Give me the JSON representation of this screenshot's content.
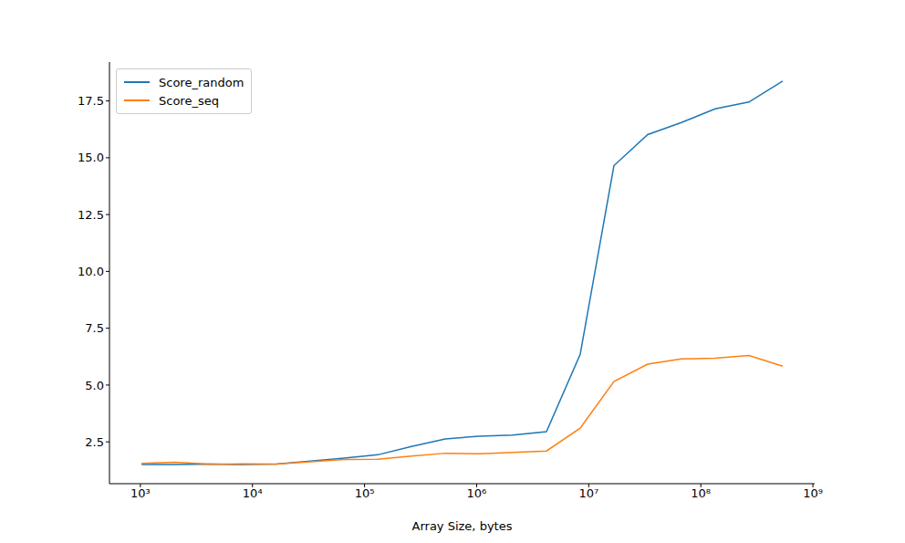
{
  "chart_data": {
    "type": "line",
    "xlabel": "Array Size, bytes",
    "log": "x",
    "grid": false,
    "legend": "upper left",
    "x": [
      1024,
      2048,
      4096,
      8192,
      16384,
      32768,
      65536,
      131072,
      262144,
      524288,
      1048576,
      2097152,
      4194304,
      8388608,
      16777216,
      33554432,
      67108864,
      134217728,
      268435456,
      536870912
    ],
    "series": [
      {
        "name": "Score_random",
        "color": "#1f77b4",
        "values": [
          1.5,
          1.5,
          1.52,
          1.5,
          1.52,
          1.65,
          1.78,
          1.93,
          2.3,
          2.63,
          2.75,
          2.8,
          2.95,
          6.35,
          14.65,
          16.02,
          16.55,
          17.15,
          17.45,
          18.37
        ]
      },
      {
        "name": "Score_seq",
        "color": "#ff7f0e",
        "values": [
          1.55,
          1.6,
          1.52,
          1.53,
          1.52,
          1.62,
          1.72,
          1.73,
          1.87,
          2.0,
          1.98,
          2.04,
          2.1,
          3.1,
          5.15,
          5.92,
          6.15,
          6.18,
          6.3,
          5.83
        ]
      }
    ],
    "xlim": [
      530,
      1037000000
    ],
    "xticks": [
      {
        "value": 1000,
        "label": "10³"
      },
      {
        "value": 10000,
        "label": "10⁴"
      },
      {
        "value": 100000,
        "label": "10⁵"
      },
      {
        "value": 1000000,
        "label": "10⁶"
      },
      {
        "value": 10000000,
        "label": "10⁷"
      },
      {
        "value": 100000000,
        "label": "10⁸"
      },
      {
        "value": 1000000000,
        "label": "10⁹"
      }
    ],
    "ylim": [
      0.66,
      19.21
    ],
    "yticks": [
      2.5,
      {
        "value": 5,
        "label": "5.0"
      },
      7.5,
      {
        "value": 10,
        "label": "10.0"
      },
      12.5,
      {
        "value": 15,
        "label": "15.0"
      },
      17.5
    ]
  }
}
